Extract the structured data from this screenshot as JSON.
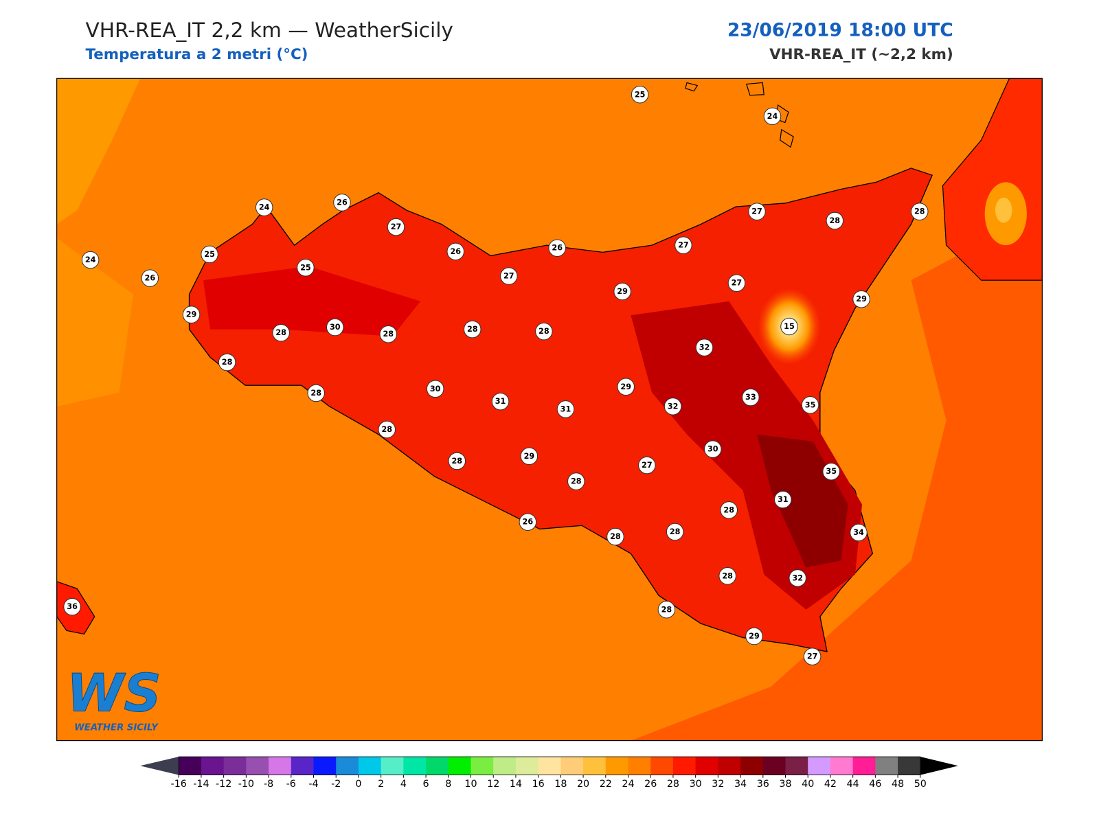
{
  "header": {
    "title": "VHR-REA_IT 2,2 km — WeatherSicily",
    "subtitle": "Temperatura a 2 metri (°C)",
    "datetime": "23/06/2019 18:00 UTC",
    "model": "VHR-REA_IT (~2,2 km)"
  },
  "map": {
    "station_values": [
      25,
      24,
      24,
      26,
      27,
      24,
      25,
      26,
      25,
      26,
      26,
      27,
      27,
      28,
      28,
      27,
      29,
      27,
      29,
      29,
      28,
      30,
      28,
      28,
      28,
      15,
      32,
      28,
      28,
      30,
      31,
      31,
      29,
      32,
      33,
      35,
      28,
      28,
      29,
      30,
      27,
      35,
      28,
      31,
      28,
      26,
      28,
      28,
      34,
      28,
      32,
      36,
      28,
      29,
      27
    ]
  },
  "logo": {
    "initials": "WS",
    "name": "WEATHER SICILY"
  },
  "colorbar": {
    "ticks": [
      -16,
      -14,
      -12,
      -10,
      -8,
      -6,
      -4,
      -2,
      0,
      2,
      4,
      6,
      8,
      10,
      12,
      14,
      16,
      18,
      20,
      22,
      24,
      26,
      28,
      30,
      32,
      34,
      36,
      38,
      40,
      42,
      44,
      46,
      48,
      50
    ],
    "colors": [
      "#47005a",
      "#6a148f",
      "#7b2e9a",
      "#9850b0",
      "#d677e8",
      "#5a25c8",
      "#0a1aff",
      "#1a8bd8",
      "#00c8e8",
      "#55eec8",
      "#00e6a5",
      "#00d86a",
      "#00ee00",
      "#7aee40",
      "#c0ec88",
      "#dcec9a",
      "#ffe3a0",
      "#ffcc77",
      "#ffc03c",
      "#ff9900",
      "#ff7f00",
      "#ff4800",
      "#ff1a00",
      "#e00000",
      "#c00000",
      "#8e0000",
      "#6a0022",
      "#7a2046",
      "#d49aff",
      "#ff7ad0",
      "#ff1e96",
      "#808080",
      "#383838"
    ],
    "under_color": "#3d3d50",
    "over_color": "#000000"
  }
}
